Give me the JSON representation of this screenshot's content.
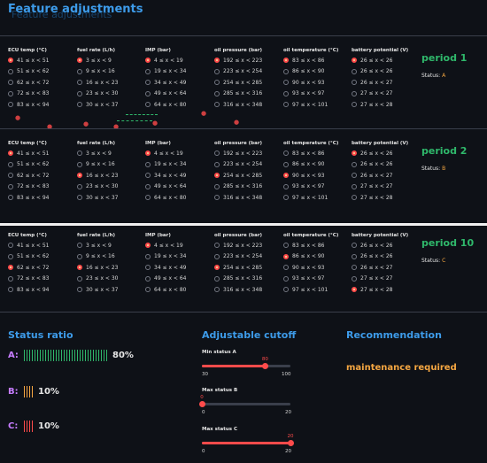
{
  "page": {
    "title": "Feature adjustments",
    "ghost_title": "Feature adjustments"
  },
  "columns": [
    {
      "header": "ECU temp (°C)",
      "options": [
        "41 ≤ x < 51",
        "51 ≤ x < 62",
        "62 ≤ x < 72",
        "72 ≤ x < 83",
        "83 ≤ x < 94"
      ]
    },
    {
      "header": "fuel rate (L/h)",
      "options": [
        "3 ≤ x < 9",
        "9 ≤ x < 16",
        "16 ≤ x < 23",
        "23 ≤ x < 30",
        "30 ≤ x < 37"
      ]
    },
    {
      "header": "IMP (bar)",
      "options": [
        "4 ≤ x < 19",
        "19 ≤ x < 34",
        "34 ≤ x < 49",
        "49 ≤ x < 64",
        "64 ≤ x < 80"
      ]
    },
    {
      "header": "oil pressure (bar)",
      "options": [
        "192 ≤ x < 223",
        "223 ≤ x < 254",
        "254 ≤ x < 285",
        "285 ≤ x < 316",
        "316 ≤ x < 348"
      ]
    },
    {
      "header": "oil temperature (°C)",
      "options": [
        "83 ≤ x < 86",
        "86 ≤ x < 90",
        "90 ≤ x < 93",
        "93 ≤ x < 97",
        "97 ≤ x < 101"
      ]
    },
    {
      "header": "battery potential (V)",
      "options": [
        "26 ≤ x < 26",
        "26 ≤ x < 26",
        "26 ≤ x < 27",
        "27 ≤ x < 27",
        "27 ≤ x < 28"
      ]
    }
  ],
  "periods": [
    {
      "label": "period 1",
      "status_prefix": "Status:",
      "status_value": "A",
      "selected": [
        0,
        0,
        0,
        0,
        0,
        0
      ]
    },
    {
      "label": "period 2",
      "status_prefix": "Status:",
      "status_value": "B",
      "selected": [
        0,
        2,
        0,
        2,
        2,
        0
      ]
    },
    {
      "label": "period 10",
      "status_prefix": "Status:",
      "status_value": "C",
      "selected": [
        2,
        2,
        0,
        2,
        1,
        4
      ]
    }
  ],
  "status_ratio": {
    "title": "Status ratio",
    "rows": [
      {
        "letter": "A:",
        "value": "80%",
        "fraction": 0.8,
        "color": "#2fb86b",
        "letter_color": "#c77dff"
      },
      {
        "letter": "B:",
        "value": "10%",
        "fraction": 0.1,
        "color": "#f5a742",
        "letter_color": "#c77dff"
      },
      {
        "letter": "C:",
        "value": "10%",
        "fraction": 0.1,
        "color": "#ff4b4b",
        "letter_color": "#c77dff"
      }
    ]
  },
  "cutoff": {
    "title": "Adjustable cutoff",
    "sliders": [
      {
        "label": "Min status A",
        "min": 30,
        "max": 100,
        "value": 80,
        "min_label": "30",
        "max_label": "100",
        "value_label": "80"
      },
      {
        "label": "Max status B",
        "min": 0,
        "max": 20,
        "value": 0,
        "min_label": "0",
        "max_label": "20",
        "value_label": "0"
      },
      {
        "label": "Max status C",
        "min": 0,
        "max": 20,
        "value": 20,
        "min_label": "0",
        "max_label": "20",
        "value_label": "20"
      }
    ]
  },
  "recommendation": {
    "title": "Recommendation",
    "text": "maintenance required"
  },
  "colors": {
    "accent": "#3d9be9",
    "period": "#2fb86b",
    "status": "#f5a742",
    "radio_selected": "#ff4b4b"
  }
}
